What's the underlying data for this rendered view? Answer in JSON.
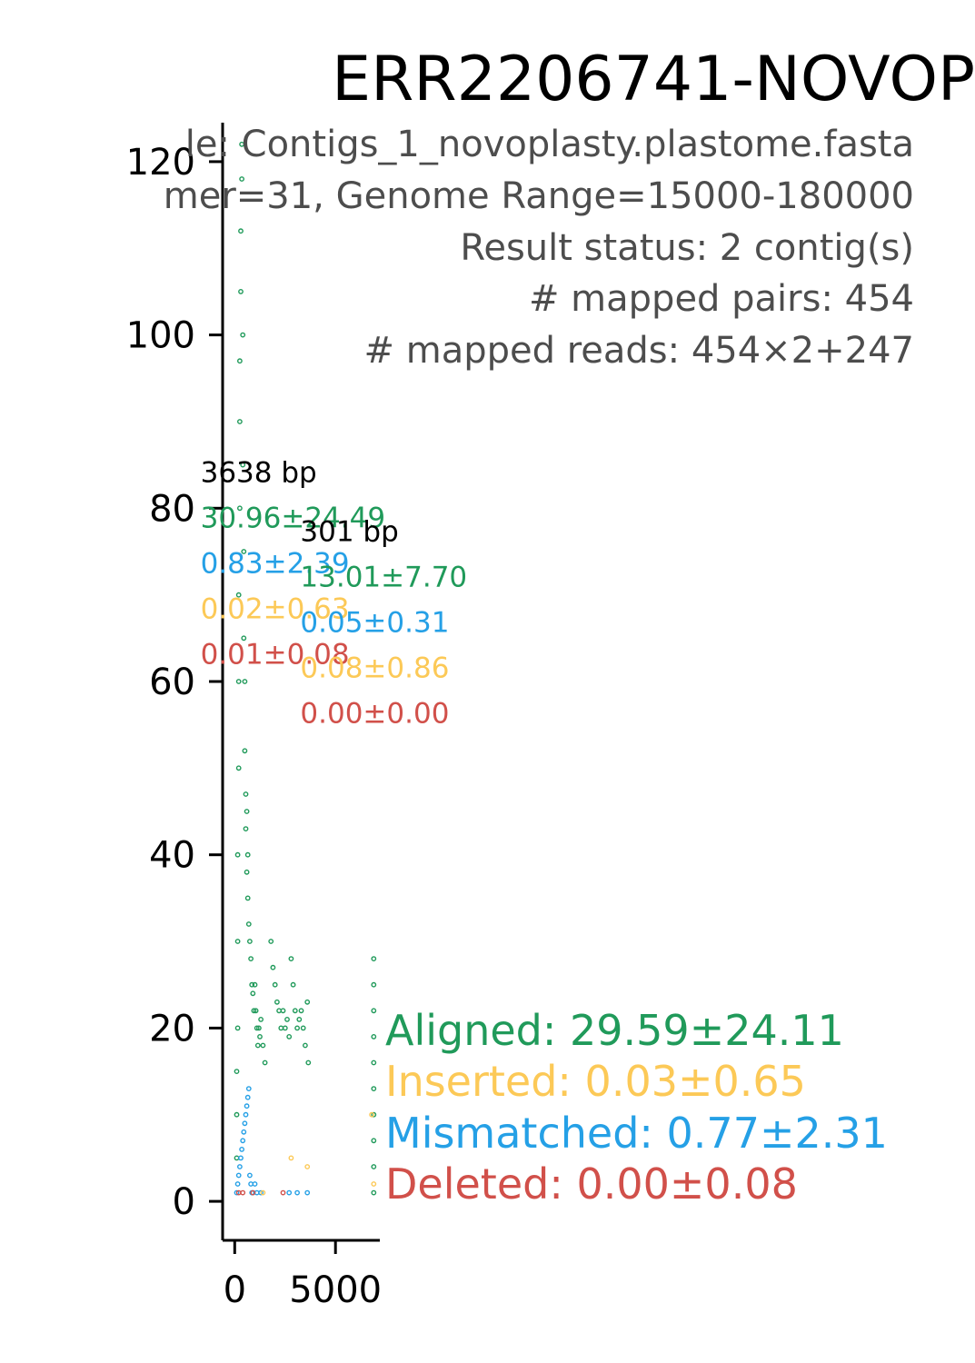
{
  "chart_data": {
    "type": "scatter",
    "title": "ERR2206741-NOVOP",
    "subtitle_lines": [
      "le: Contigs_1_novoplasty.plastome.fasta",
      "mer=31, Genome Range=15000-180000",
      "Result status: 2 contig(s)",
      "# mapped pairs: 454",
      "# mapped reads: 454×2+247"
    ],
    "xlabel": "",
    "ylabel": "",
    "xlim": [
      -600,
      7200
    ],
    "ylim": [
      -4.5,
      124.5
    ],
    "x_ticks": [
      0,
      5000
    ],
    "y_ticks": [
      0,
      20,
      40,
      60,
      80,
      100,
      120
    ],
    "grid": false,
    "colors": {
      "aligned": "#209a5a",
      "inserted": "#fcc957",
      "mismatched": "#25a0e6",
      "deleted": "#d1504a"
    },
    "contigs": [
      {
        "length_label": "3638 bp",
        "label_anchor": [
          -1700,
          83
        ],
        "aligned": "30.96±24.49",
        "mismatched": "0.83±2.39",
        "inserted": "0.02±0.63",
        "deleted": "0.01±0.08"
      },
      {
        "length_label": "301 bp",
        "label_anchor": [
          3250,
          76.2
        ],
        "aligned": "13.01±7.70",
        "mismatched": "0.05±0.31",
        "inserted": "0.08±0.86",
        "deleted": "0.00±0.00"
      }
    ],
    "summary": {
      "aligned": "Aligned: 29.59±24.11",
      "inserted": "Inserted: 0.03±0.65",
      "mismatched": "Mismatched: 0.77±2.31",
      "deleted": "Deleted: 0.00±0.08"
    },
    "series": [
      {
        "key": "aligned",
        "points": [
          [
            100,
            5
          ],
          [
            100,
            10
          ],
          [
            100,
            15
          ],
          [
            150,
            20
          ],
          [
            150,
            30
          ],
          [
            150,
            40
          ],
          [
            200,
            50
          ],
          [
            200,
            60
          ],
          [
            200,
            70
          ],
          [
            250,
            80
          ],
          [
            250,
            90
          ],
          [
            250,
            97
          ],
          [
            300,
            105
          ],
          [
            300,
            112
          ],
          [
            350,
            118
          ],
          [
            350,
            122
          ],
          [
            400,
            100
          ],
          [
            400,
            85
          ],
          [
            450,
            75
          ],
          [
            450,
            65
          ],
          [
            500,
            60
          ],
          [
            500,
            52
          ],
          [
            550,
            47
          ],
          [
            550,
            43
          ],
          [
            600,
            45
          ],
          [
            600,
            38
          ],
          [
            650,
            40
          ],
          [
            650,
            35
          ],
          [
            700,
            32
          ],
          [
            750,
            30
          ],
          [
            800,
            28
          ],
          [
            850,
            25
          ],
          [
            900,
            24
          ],
          [
            950,
            22
          ],
          [
            1000,
            25
          ],
          [
            1050,
            22
          ],
          [
            1100,
            20
          ],
          [
            1150,
            18
          ],
          [
            1200,
            20
          ],
          [
            1250,
            19
          ],
          [
            1300,
            21
          ],
          [
            1400,
            18
          ],
          [
            1500,
            16
          ],
          [
            1800,
            30
          ],
          [
            1900,
            27
          ],
          [
            2000,
            25
          ],
          [
            2100,
            23
          ],
          [
            2200,
            22
          ],
          [
            2300,
            20
          ],
          [
            2400,
            22
          ],
          [
            2500,
            20
          ],
          [
            2600,
            21
          ],
          [
            2700,
            19
          ],
          [
            2800,
            28
          ],
          [
            2900,
            25
          ],
          [
            3000,
            22
          ],
          [
            3100,
            20
          ],
          [
            3200,
            21
          ],
          [
            3300,
            22
          ],
          [
            3400,
            20
          ],
          [
            3500,
            18
          ],
          [
            3600,
            23
          ],
          [
            3650,
            16
          ],
          [
            6900,
            28
          ],
          [
            6900,
            25
          ],
          [
            6900,
            22
          ],
          [
            6900,
            19
          ],
          [
            6900,
            16
          ],
          [
            6900,
            13
          ],
          [
            6900,
            10
          ],
          [
            6900,
            7
          ],
          [
            6900,
            4
          ],
          [
            6900,
            1
          ]
        ]
      },
      {
        "key": "mismatched",
        "points": [
          [
            100,
            1
          ],
          [
            150,
            2
          ],
          [
            200,
            3
          ],
          [
            250,
            4
          ],
          [
            300,
            5
          ],
          [
            350,
            6
          ],
          [
            400,
            7
          ],
          [
            450,
            8
          ],
          [
            500,
            9
          ],
          [
            550,
            10
          ],
          [
            600,
            11
          ],
          [
            650,
            12
          ],
          [
            700,
            13
          ],
          [
            750,
            3
          ],
          [
            800,
            2
          ],
          [
            850,
            1
          ],
          [
            900,
            1
          ],
          [
            1000,
            2
          ],
          [
            1100,
            1
          ],
          [
            1300,
            1
          ],
          [
            2700,
            1
          ],
          [
            3100,
            1
          ],
          [
            3600,
            1
          ]
        ]
      },
      {
        "key": "inserted",
        "points": [
          [
            1400,
            1
          ],
          [
            2800,
            5
          ],
          [
            3600,
            4
          ],
          [
            6800,
            10
          ],
          [
            6900,
            2
          ]
        ]
      },
      {
        "key": "deleted",
        "points": [
          [
            200,
            1
          ],
          [
            400,
            1
          ],
          [
            900,
            1
          ],
          [
            2400,
            1
          ]
        ]
      }
    ]
  }
}
